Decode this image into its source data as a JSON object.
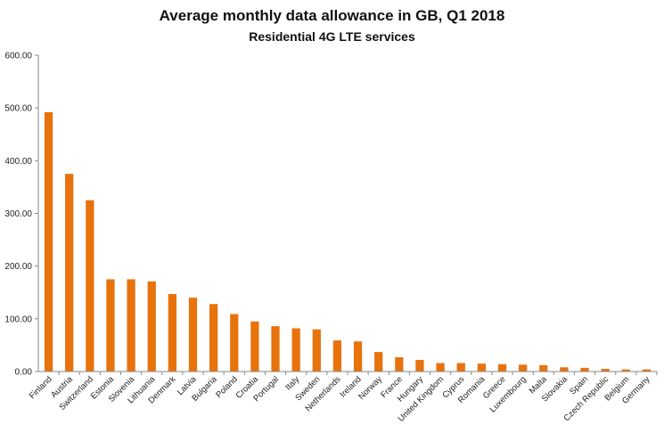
{
  "chart_data": {
    "type": "bar",
    "title": "Average monthly data allowance in GB, Q1 2018",
    "subtitle": "Residential 4G LTE services",
    "xlabel": "",
    "ylabel": "",
    "ylim": [
      0,
      600
    ],
    "yticks": [
      "0.00",
      "100.00",
      "200.00",
      "300.00",
      "400.00",
      "500.00",
      "600.00"
    ],
    "ytick_values": [
      0,
      100,
      200,
      300,
      400,
      500,
      600
    ],
    "grid": false,
    "bar_color": "#E8720C",
    "categories": [
      "Finland",
      "Austria",
      "Switzerland",
      "Estonia",
      "Slovenia",
      "Lithuania",
      "Denmark",
      "Latvia",
      "Bulgaria",
      "Poland",
      "Croatia",
      "Portugal",
      "Italy",
      "Sweden",
      "Netherlands",
      "Ireland",
      "Norway",
      "France",
      "Hungary",
      "United Kingdom",
      "Cyprus",
      "Romania",
      "Greece",
      "Luxembourg",
      "Malta",
      "Slovakia",
      "Spain",
      "Czech Republic",
      "Belgium",
      "Germany"
    ],
    "values": [
      492,
      375,
      325,
      175,
      175,
      171,
      147,
      140,
      128,
      109,
      95,
      86,
      82,
      80,
      59,
      57,
      37,
      27,
      22,
      16,
      16,
      15,
      14,
      13,
      12,
      8,
      7,
      5,
      4,
      4
    ]
  }
}
